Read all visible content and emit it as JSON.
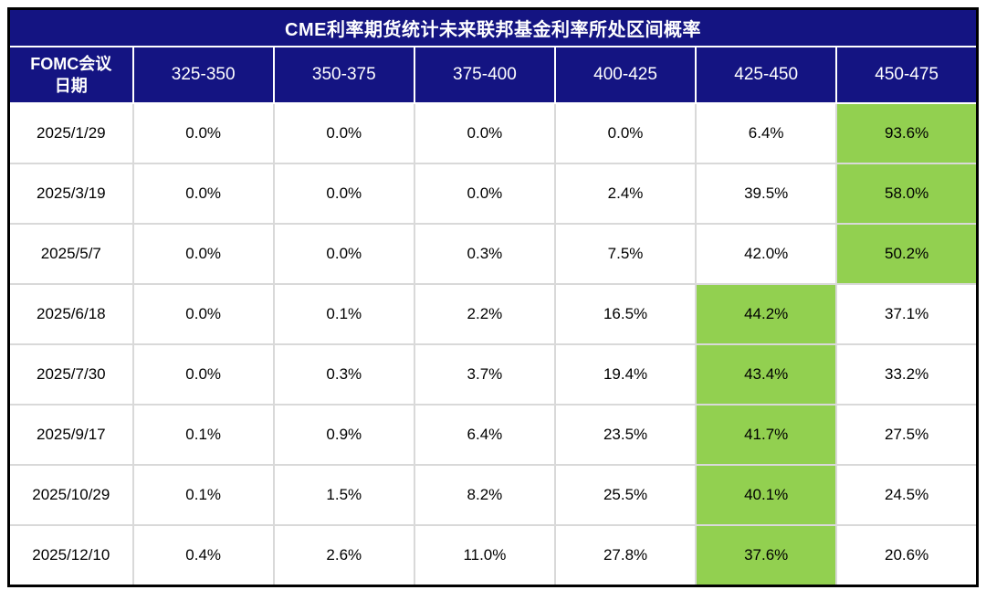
{
  "colors": {
    "header_bg": "#141482",
    "highlight_bg": "#92D050",
    "grid_line": "#d9d9d9",
    "outer_border": "#000000",
    "header_text": "#ffffff",
    "cell_text": "#000000"
  },
  "chart_data": {
    "type": "table",
    "title": "CME利率期货统计未来联邦基金利率所处区间概率",
    "date_column_header": "FOMC会议\n日期",
    "rate_range_columns": [
      "325-350",
      "350-375",
      "375-400",
      "400-425",
      "425-450",
      "450-475"
    ],
    "rows": [
      {
        "date": "2025/1/29",
        "values": [
          "0.0%",
          "0.0%",
          "0.0%",
          "0.0%",
          "6.4%",
          "93.6%"
        ],
        "highlight_col": 5
      },
      {
        "date": "2025/3/19",
        "values": [
          "0.0%",
          "0.0%",
          "0.0%",
          "2.4%",
          "39.5%",
          "58.0%"
        ],
        "highlight_col": 5
      },
      {
        "date": "2025/5/7",
        "values": [
          "0.0%",
          "0.0%",
          "0.3%",
          "7.5%",
          "42.0%",
          "50.2%"
        ],
        "highlight_col": 5
      },
      {
        "date": "2025/6/18",
        "values": [
          "0.0%",
          "0.1%",
          "2.2%",
          "16.5%",
          "44.2%",
          "37.1%"
        ],
        "highlight_col": 4
      },
      {
        "date": "2025/7/30",
        "values": [
          "0.0%",
          "0.3%",
          "3.7%",
          "19.4%",
          "43.4%",
          "33.2%"
        ],
        "highlight_col": 4
      },
      {
        "date": "2025/9/17",
        "values": [
          "0.1%",
          "0.9%",
          "6.4%",
          "23.5%",
          "41.7%",
          "27.5%"
        ],
        "highlight_col": 4
      },
      {
        "date": "2025/10/29",
        "values": [
          "0.1%",
          "1.5%",
          "8.2%",
          "25.5%",
          "40.1%",
          "24.5%"
        ],
        "highlight_col": 4
      },
      {
        "date": "2025/12/10",
        "values": [
          "0.4%",
          "2.6%",
          "11.0%",
          "27.8%",
          "37.6%",
          "20.6%"
        ],
        "highlight_col": 4
      }
    ]
  }
}
